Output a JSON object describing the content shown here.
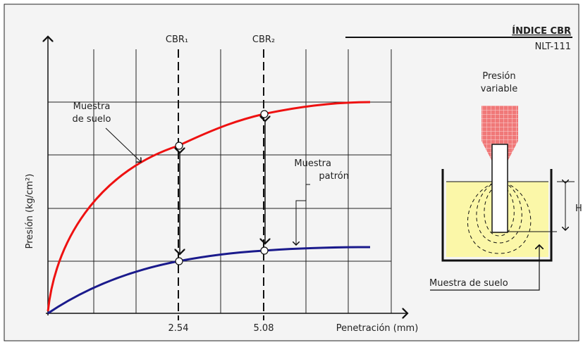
{
  "header": {
    "title": "ÍNDICE CBR",
    "standard": "NLT-111"
  },
  "chart": {
    "y_axis_label": "Presión (kg/cm²)",
    "x_axis_label": "Penetración (mm)",
    "x_ticks": [
      "2.54",
      "5.08"
    ],
    "markers": [
      "CBR₁",
      "CBR₂"
    ],
    "curves": [
      {
        "label": [
          "Muestra",
          "de suelo"
        ]
      },
      {
        "label": [
          "Muestra",
          "patrón"
        ]
      }
    ]
  },
  "apparatus": {
    "load_label": [
      "Presión",
      "variable"
    ],
    "height_label": "H",
    "sample_label": "Muestra de suelo"
  }
}
